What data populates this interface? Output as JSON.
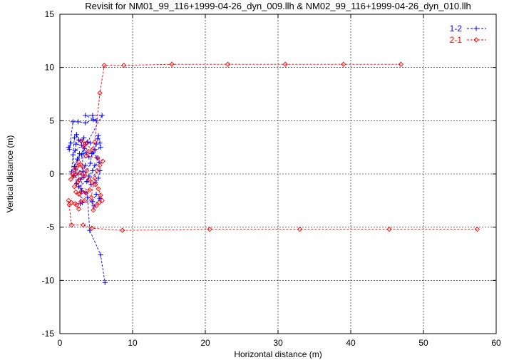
{
  "chart_data": {
    "type": "scatter",
    "title": "Revisit for NM01_99_116+1999-04-26_dyn_009.llh & NM02_99_116+1999-04-26_dyn_010.llh",
    "xlabel": "Horizontal distance (m)",
    "ylabel": "Vertical distance (m)",
    "xlim": [
      0,
      60
    ],
    "ylim": [
      -15,
      15
    ],
    "xticks": [
      "0",
      "10",
      "20",
      "30",
      "40",
      "50",
      "60"
    ],
    "yticks": [
      "-15",
      "-10",
      "-5",
      "0",
      "5",
      "10",
      "15"
    ],
    "grid": true,
    "legend_position": "top-right",
    "series": [
      {
        "name": "1-2",
        "color": "#0000ff",
        "marker": "plus",
        "line": "dashed",
        "points": [
          [
            1.2,
            2.5
          ],
          [
            1.5,
            2.9
          ],
          [
            1.3,
            2.3
          ],
          [
            1.8,
            4.9
          ],
          [
            2.5,
            4.9
          ],
          [
            3.5,
            4.8
          ],
          [
            4.6,
            5.1
          ],
          [
            5.0,
            5.0
          ],
          [
            3.5,
            5.5
          ],
          [
            4.5,
            5.5
          ],
          [
            5.8,
            5.5
          ],
          [
            1.6,
            0.2
          ],
          [
            2.0,
            3.4
          ],
          [
            2.3,
            3.7
          ],
          [
            2.6,
            3.2
          ],
          [
            2.2,
            2.8
          ],
          [
            3.0,
            2.7
          ],
          [
            3.4,
            2.4
          ],
          [
            3.0,
            1.8
          ],
          [
            3.6,
            2.0
          ],
          [
            4.0,
            1.6
          ],
          [
            2.4,
            1.4
          ],
          [
            2.7,
            1.9
          ],
          [
            2.0,
            0.7
          ],
          [
            2.2,
            0.4
          ],
          [
            3.2,
            0.2
          ],
          [
            3.5,
            0.8
          ],
          [
            2.5,
            0.0
          ],
          [
            1.9,
            -0.2
          ],
          [
            2.8,
            -0.5
          ],
          [
            3.3,
            -0.3
          ],
          [
            4.2,
            1.0
          ],
          [
            4.4,
            1.9
          ],
          [
            4.8,
            2.3
          ],
          [
            5.0,
            2.8
          ],
          [
            5.2,
            3.3
          ],
          [
            5.3,
            3.6
          ],
          [
            5.5,
            2.9
          ],
          [
            5.6,
            2.5
          ],
          [
            4.6,
            2.0
          ],
          [
            5.1,
            1.5
          ],
          [
            5.4,
            1.1
          ],
          [
            4.8,
            0.8
          ],
          [
            4.5,
            0.3
          ],
          [
            4.0,
            -0.2
          ],
          [
            3.7,
            -0.7
          ],
          [
            4.3,
            -1.0
          ],
          [
            4.9,
            -0.8
          ],
          [
            5.3,
            -0.4
          ],
          [
            5.5,
            0.3
          ],
          [
            2.6,
            -1.2
          ],
          [
            3.0,
            -1.6
          ],
          [
            3.6,
            -1.8
          ],
          [
            2.3,
            -0.9
          ],
          [
            1.8,
            1.8
          ],
          [
            2.1,
            2.2
          ],
          [
            3.8,
            3.0
          ],
          [
            4.2,
            2.9
          ],
          [
            2.9,
            3.1
          ],
          [
            3.3,
            3.4
          ],
          [
            2.8,
            -2.8
          ],
          [
            3.1,
            -2.7
          ],
          [
            4.5,
            -2.6
          ],
          [
            5.0,
            -1.9
          ],
          [
            5.5,
            -2.3
          ],
          [
            4.7,
            -3.0
          ],
          [
            3.8,
            -2.2
          ],
          [
            4.1,
            -5.3
          ],
          [
            5.6,
            -7.6
          ],
          [
            6.2,
            -10.2
          ]
        ]
      },
      {
        "name": "2-1",
        "color": "#ff0000",
        "marker": "diamond",
        "line": "dashed",
        "points": [
          [
            57.4,
            -5.2
          ],
          [
            45.3,
            -5.2
          ],
          [
            33.0,
            -5.2
          ],
          [
            20.6,
            -5.2
          ],
          [
            8.6,
            -5.3
          ],
          [
            4.4,
            -5.1
          ],
          [
            3.2,
            -4.8
          ],
          [
            1.6,
            -4.8
          ],
          [
            1.2,
            -2.5
          ],
          [
            1.3,
            -2.9
          ],
          [
            1.6,
            -2.7
          ],
          [
            2.1,
            -2.8
          ],
          [
            2.3,
            -2.9
          ],
          [
            2.6,
            -3.3
          ],
          [
            2.9,
            -2.6
          ],
          [
            3.4,
            -2.5
          ],
          [
            2.2,
            -1.7
          ],
          [
            2.6,
            -1.9
          ],
          [
            3.0,
            -1.7
          ],
          [
            3.6,
            -1.8
          ],
          [
            4.1,
            -1.5
          ],
          [
            2.0,
            -1.2
          ],
          [
            2.4,
            -0.8
          ],
          [
            2.7,
            -0.5
          ],
          [
            1.9,
            -0.2
          ],
          [
            1.5,
            -0.5
          ],
          [
            1.7,
            0.0
          ],
          [
            2.2,
            0.0
          ],
          [
            2.8,
            0.1
          ],
          [
            3.3,
            -0.2
          ],
          [
            3.7,
            0.3
          ],
          [
            3.0,
            0.8
          ],
          [
            2.4,
            0.7
          ],
          [
            2.0,
            0.4
          ],
          [
            2.6,
            1.1
          ],
          [
            4.0,
            -0.5
          ],
          [
            4.4,
            -0.8
          ],
          [
            4.9,
            -1.0
          ],
          [
            5.3,
            -1.4
          ],
          [
            5.6,
            -2.0
          ],
          [
            5.8,
            -2.5
          ],
          [
            5.4,
            -2.7
          ],
          [
            5.0,
            -3.0
          ],
          [
            4.6,
            -3.4
          ],
          [
            4.3,
            -2.2
          ],
          [
            4.8,
            -0.4
          ],
          [
            5.1,
            0.3
          ],
          [
            5.5,
            0.8
          ],
          [
            5.9,
            1.2
          ],
          [
            5.2,
            1.5
          ],
          [
            3.6,
            1.7
          ],
          [
            4.0,
            2.1
          ],
          [
            3.3,
            2.6
          ],
          [
            3.7,
            2.9
          ],
          [
            2.9,
            3.1
          ],
          [
            4.5,
            2.3
          ],
          [
            4.8,
            3.0
          ],
          [
            5.5,
            7.6
          ],
          [
            6.1,
            10.2
          ],
          [
            8.8,
            10.2
          ],
          [
            15.4,
            10.3
          ],
          [
            23.1,
            10.3
          ],
          [
            31.0,
            10.3
          ],
          [
            39.0,
            10.3
          ],
          [
            46.9,
            10.3
          ]
        ]
      }
    ]
  }
}
